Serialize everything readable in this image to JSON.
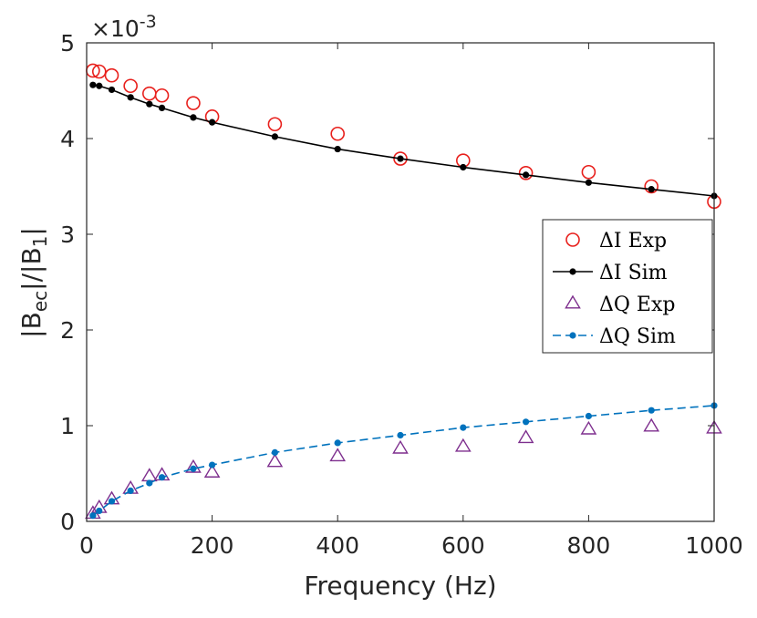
{
  "chart_data": {
    "type": "scatter",
    "title": "",
    "xlabel": "Frequency (Hz)",
    "ylabel_main": "|B",
    "ylabel_sub1": "ec",
    "ylabel_mid": "|/|B",
    "ylabel_sub2": "1",
    "ylabel_end": "|",
    "y_multiplier_base": "×10",
    "y_multiplier_exp": "-3",
    "xlim": [
      0,
      1000
    ],
    "ylim": [
      0,
      5
    ],
    "xticks": [
      0,
      200,
      400,
      600,
      800,
      1000
    ],
    "yticks": [
      0,
      1,
      2,
      3,
      4,
      5
    ],
    "xtick_labels": [
      "0",
      "200",
      "400",
      "600",
      "800",
      "1000"
    ],
    "ytick_labels": [
      "0",
      "1",
      "2",
      "3",
      "4",
      "5"
    ],
    "legend_position": "center-right",
    "series": [
      {
        "name": "ΔI Exp",
        "marker": "circle-open",
        "color": "#e8201c",
        "x": [
          10,
          20,
          40,
          70,
          100,
          120,
          170,
          200,
          300,
          400,
          500,
          600,
          700,
          800,
          900,
          1000
        ],
        "y": [
          4.71,
          4.7,
          4.66,
          4.55,
          4.47,
          4.45,
          4.37,
          4.23,
          4.15,
          4.05,
          3.79,
          3.77,
          3.64,
          3.65,
          3.5,
          3.34
        ]
      },
      {
        "name": "ΔI Sim",
        "marker": "dot",
        "line": "solid",
        "color": "#000000",
        "x": [
          10,
          20,
          40,
          70,
          100,
          120,
          170,
          200,
          300,
          400,
          500,
          600,
          700,
          800,
          900,
          1000
        ],
        "y": [
          4.56,
          4.55,
          4.51,
          4.43,
          4.36,
          4.32,
          4.22,
          4.17,
          4.02,
          3.89,
          3.79,
          3.7,
          3.62,
          3.54,
          3.47,
          3.4
        ]
      },
      {
        "name": "ΔQ Exp",
        "marker": "triangle-open",
        "color": "#7e2f8e",
        "x": [
          10,
          20,
          40,
          70,
          100,
          120,
          170,
          200,
          300,
          400,
          500,
          600,
          700,
          800,
          900,
          1000
        ],
        "y": [
          0.08,
          0.14,
          0.23,
          0.34,
          0.47,
          0.48,
          0.56,
          0.51,
          0.62,
          0.68,
          0.76,
          0.78,
          0.87,
          0.96,
          0.99,
          0.97
        ]
      },
      {
        "name": "ΔQ Sim",
        "marker": "dot",
        "line": "dashed",
        "color": "#0072bd",
        "x": [
          10,
          20,
          40,
          70,
          100,
          120,
          170,
          200,
          300,
          400,
          500,
          600,
          700,
          800,
          900,
          1000
        ],
        "y": [
          0.06,
          0.11,
          0.21,
          0.32,
          0.4,
          0.46,
          0.55,
          0.59,
          0.72,
          0.82,
          0.9,
          0.98,
          1.04,
          1.1,
          1.16,
          1.21
        ]
      }
    ]
  }
}
